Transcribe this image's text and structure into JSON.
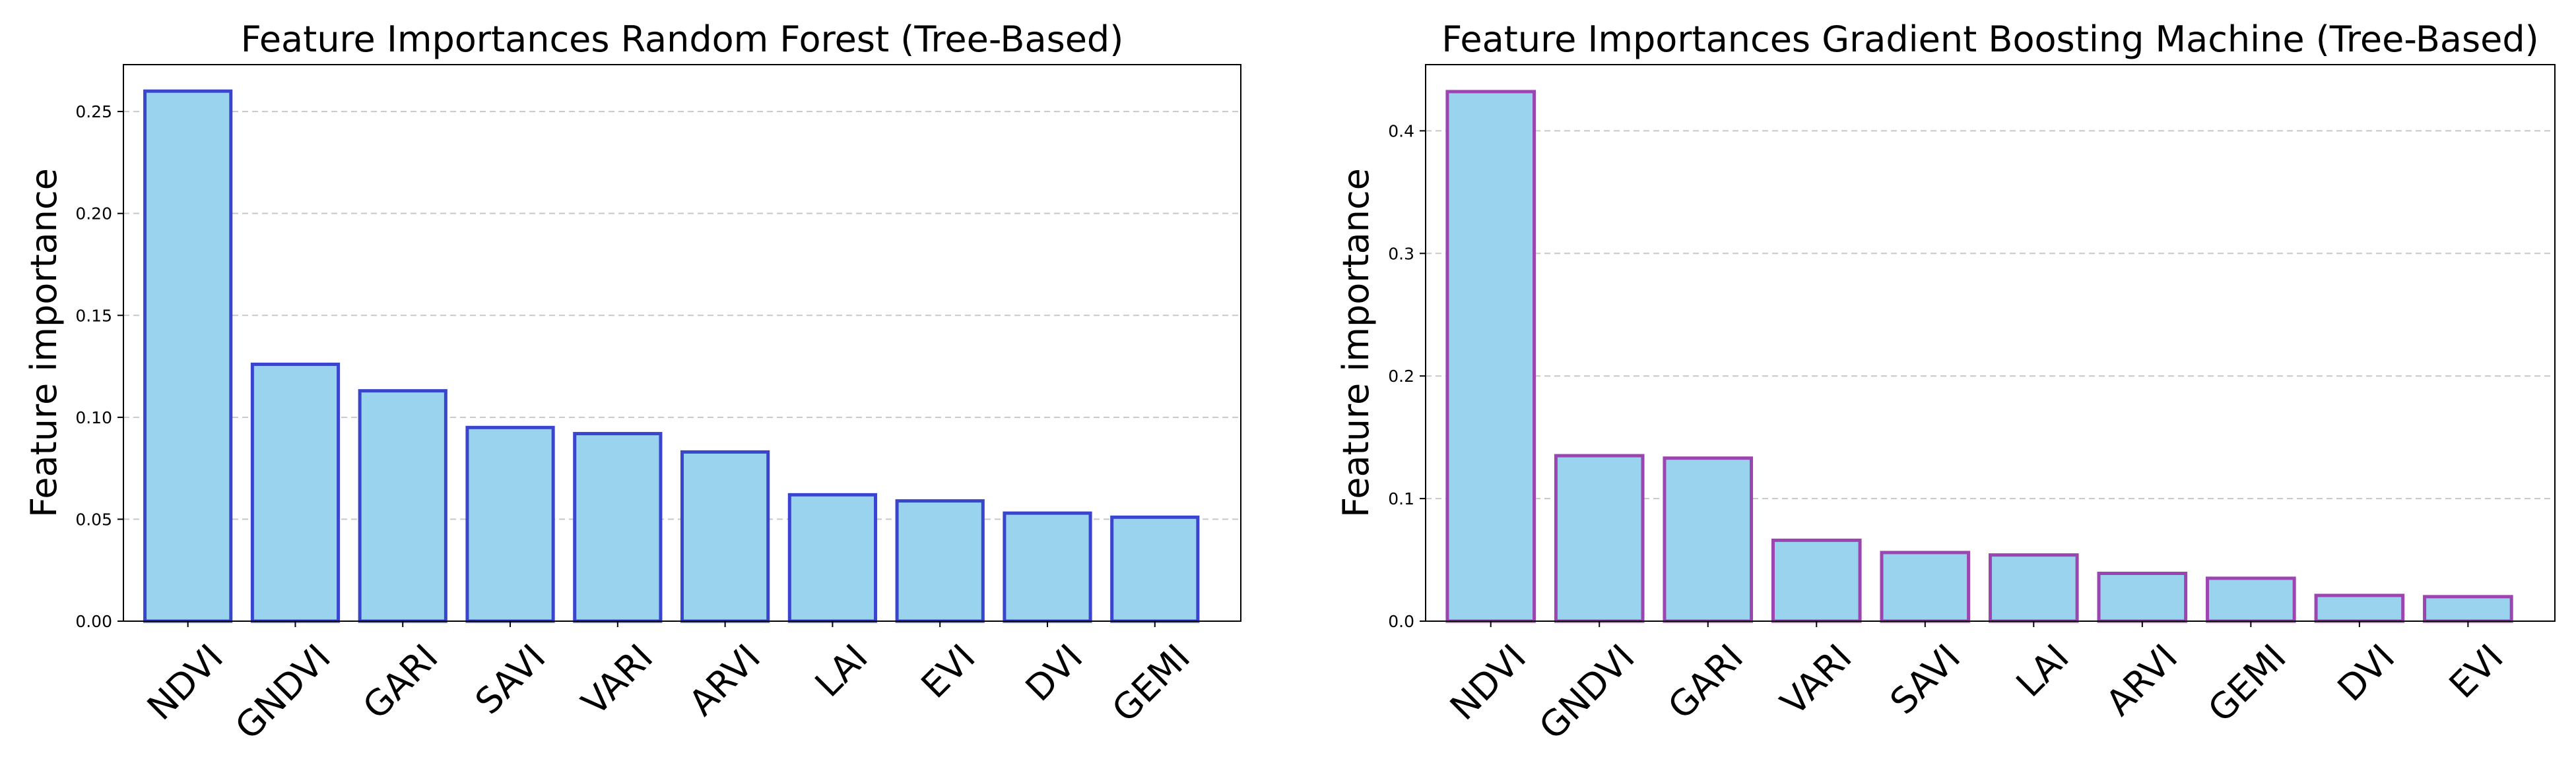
{
  "chart_data": [
    {
      "type": "bar",
      "title": "Feature Importances Random Forest (Tree-Based)",
      "xlabel": "",
      "ylabel": "Feature importance",
      "categories": [
        "NDVI",
        "GNDVI",
        "GARI",
        "SAVI",
        "VARI",
        "ARVI",
        "LAI",
        "EVI",
        "DVI",
        "GEMI"
      ],
      "values": [
        0.26,
        0.126,
        0.113,
        0.095,
        0.092,
        0.083,
        0.062,
        0.059,
        0.053,
        0.051
      ],
      "ylim": [
        0,
        0.273
      ],
      "yticks": [
        0.0,
        0.05,
        0.1,
        0.15,
        0.2,
        0.25
      ],
      "ytick_labels": [
        "0.00",
        "0.05",
        "0.10",
        "0.15",
        "0.20",
        "0.25"
      ],
      "grid": "y-dashed",
      "colors": {
        "fill": "#9AD3EE",
        "edge": "#3A45CE"
      }
    },
    {
      "type": "bar",
      "title": "Feature Importances Gradient Boosting Machine (Tree-Based)",
      "xlabel": "",
      "ylabel": "Feature importance",
      "categories": [
        "NDVI",
        "GNDVI",
        "GARI",
        "VARI",
        "SAVI",
        "LAI",
        "ARVI",
        "GEMI",
        "DVI",
        "EVI"
      ],
      "values": [
        0.432,
        0.135,
        0.133,
        0.066,
        0.056,
        0.054,
        0.039,
        0.035,
        0.021,
        0.02
      ],
      "ylim": [
        0,
        0.454
      ],
      "yticks": [
        0.0,
        0.1,
        0.2,
        0.3,
        0.4
      ],
      "ytick_labels": [
        "0.0",
        "0.1",
        "0.2",
        "0.3",
        "0.4"
      ],
      "grid": "y-dashed",
      "colors": {
        "fill": "#9AD3EE",
        "edge": "#9C45B0"
      }
    }
  ]
}
